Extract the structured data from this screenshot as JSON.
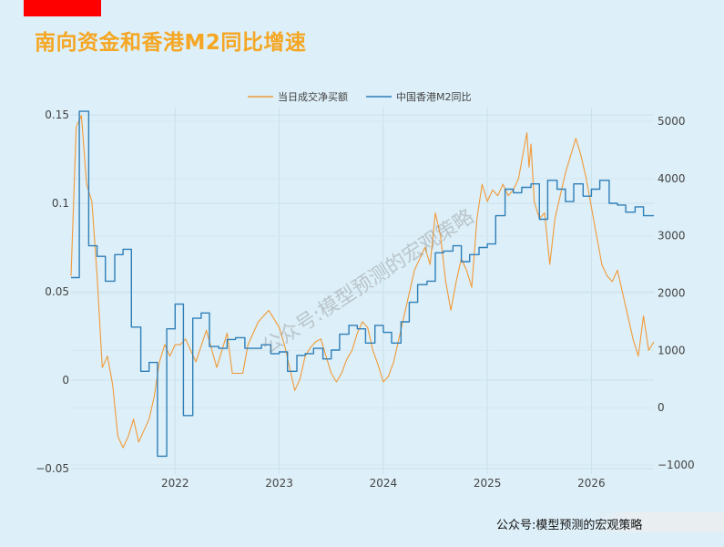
{
  "title": "南向资金和香港M2同比增速",
  "footer": "公众号:模型预测的宏观策略",
  "watermark": "公众号:模型预测的宏观策略",
  "colors": {
    "title": "#f5a623",
    "series_flow": "#f19a38",
    "series_m2": "#2f7fb8",
    "background": "#ddeff8"
  },
  "chart_data": {
    "type": "line",
    "title": "",
    "legend_position": "top-center",
    "grid": true,
    "x_ticks": [
      2022,
      2023,
      2024,
      2025,
      2026
    ],
    "x_range": [
      2021.0,
      2026.6
    ],
    "y_left": {
      "range": [
        -0.05,
        0.16
      ],
      "ticks": [
        0.15,
        0.1,
        0.05,
        0,
        -0.05
      ],
      "tick_labels": [
        "0.15",
        "0.1",
        "0.05",
        "0",
        "−0.05"
      ]
    },
    "y_right": {
      "range": [
        -1100,
        5250
      ],
      "ticks": [
        5000,
        4000,
        3000,
        2000,
        1000,
        0,
        -1000
      ],
      "tick_labels": [
        "5000",
        "4000",
        "3000",
        "2000",
        "1000",
        "0",
        "−1000"
      ]
    },
    "series": [
      {
        "name": "当日成交净买额",
        "axis": "right",
        "color": "#f19a38",
        "x": [
          2021.0,
          2021.05,
          2021.1,
          2021.15,
          2021.2,
          2021.25,
          2021.3,
          2021.35,
          2021.4,
          2021.45,
          2021.5,
          2021.55,
          2021.6,
          2021.65,
          2021.7,
          2021.75,
          2021.8,
          2021.85,
          2021.9,
          2021.95,
          2022.0,
          2022.05,
          2022.1,
          2022.2,
          2022.3,
          2022.4,
          2022.5,
          2022.55,
          2022.6,
          2022.65,
          2022.7,
          2022.8,
          2022.9,
          2022.95,
          2023.0,
          2023.05,
          2023.1,
          2023.15,
          2023.2,
          2023.25,
          2023.3,
          2023.35,
          2023.4,
          2023.45,
          2023.5,
          2023.55,
          2023.6,
          2023.65,
          2023.7,
          2023.75,
          2023.8,
          2023.85,
          2023.9,
          2023.95,
          2024.0,
          2024.05,
          2024.1,
          2024.15,
          2024.2,
          2024.25,
          2024.3,
          2024.35,
          2024.4,
          2024.45,
          2024.5,
          2024.55,
          2024.6,
          2024.65,
          2024.7,
          2024.75,
          2024.8,
          2024.85,
          2024.9,
          2024.95,
          2025.0,
          2025.05,
          2025.1,
          2025.15,
          2025.2,
          2025.25,
          2025.3,
          2025.35,
          2025.38,
          2025.4,
          2025.42,
          2025.45,
          2025.5,
          2025.55,
          2025.6,
          2025.65,
          2025.7,
          2025.75,
          2025.8,
          2025.85,
          2025.9,
          2025.95,
          2026.0,
          2026.05,
          2026.1,
          2026.15,
          2026.2,
          2026.25,
          2026.3,
          2026.35,
          2026.4,
          2026.45,
          2026.5,
          2026.55,
          2026.6
        ],
        "values": [
          2300,
          4900,
          5100,
          3900,
          3600,
          2300,
          700,
          900,
          400,
          -500,
          -700,
          -500,
          -200,
          -600,
          -400,
          -200,
          200,
          800,
          1100,
          900,
          1100,
          1100,
          1200,
          800,
          1350,
          700,
          1300,
          600,
          600,
          600,
          1100,
          1500,
          1700,
          1550,
          1400,
          1100,
          700,
          300,
          500,
          900,
          1050,
          1150,
          1200,
          900,
          600,
          450,
          600,
          850,
          1000,
          1300,
          1500,
          1400,
          1000,
          750,
          450,
          550,
          800,
          1200,
          1600,
          2000,
          2400,
          2600,
          2800,
          2500,
          3400,
          3000,
          2200,
          1700,
          2200,
          2600,
          2400,
          2100,
          3300,
          3900,
          3600,
          3800,
          3700,
          3900,
          3700,
          3800,
          4000,
          4500,
          4800,
          4200,
          4600,
          3600,
          3300,
          3400,
          2500,
          3300,
          3700,
          4100,
          4400,
          4700,
          4400,
          4000,
          3500,
          3000,
          2500,
          2300,
          2200,
          2400,
          2000,
          1600,
          1200,
          900,
          1600,
          1000,
          1150
        ]
      },
      {
        "name": "中国香港M2同比",
        "axis": "left",
        "color": "#2f7fb8",
        "step": true,
        "x": [
          2021.0,
          2021.08,
          2021.17,
          2021.25,
          2021.33,
          2021.42,
          2021.5,
          2021.58,
          2021.67,
          2021.75,
          2021.83,
          2021.92,
          2022.0,
          2022.08,
          2022.17,
          2022.25,
          2022.33,
          2022.42,
          2022.5,
          2022.58,
          2022.67,
          2022.75,
          2022.83,
          2022.92,
          2023.0,
          2023.08,
          2023.17,
          2023.25,
          2023.33,
          2023.42,
          2023.5,
          2023.58,
          2023.67,
          2023.75,
          2023.83,
          2023.92,
          2024.0,
          2024.08,
          2024.17,
          2024.25,
          2024.33,
          2024.42,
          2024.5,
          2024.58,
          2024.67,
          2024.75,
          2024.83,
          2024.92,
          2025.0,
          2025.08,
          2025.17,
          2025.25,
          2025.33,
          2025.42,
          2025.5,
          2025.58,
          2025.67,
          2025.75,
          2025.83,
          2025.92,
          2026.0,
          2026.08,
          2026.17,
          2026.25,
          2026.33,
          2026.42,
          2026.5,
          2026.6
        ],
        "values": [
          0.058,
          0.152,
          0.076,
          0.07,
          0.056,
          0.071,
          0.074,
          0.03,
          0.005,
          0.01,
          -0.043,
          0.029,
          0.043,
          -0.02,
          0.035,
          0.038,
          0.019,
          0.018,
          0.023,
          0.024,
          0.018,
          0.018,
          0.02,
          0.015,
          0.016,
          0.005,
          0.014,
          0.015,
          0.018,
          0.012,
          0.017,
          0.026,
          0.031,
          0.029,
          0.021,
          0.031,
          0.027,
          0.021,
          0.033,
          0.044,
          0.054,
          0.056,
          0.072,
          0.073,
          0.076,
          0.067,
          0.071,
          0.075,
          0.077,
          0.093,
          0.108,
          0.106,
          0.109,
          0.111,
          0.091,
          0.113,
          0.108,
          0.101,
          0.111,
          0.104,
          0.108,
          0.113,
          0.1,
          0.099,
          0.095,
          0.098,
          0.093,
          0.093
        ]
      }
    ]
  }
}
